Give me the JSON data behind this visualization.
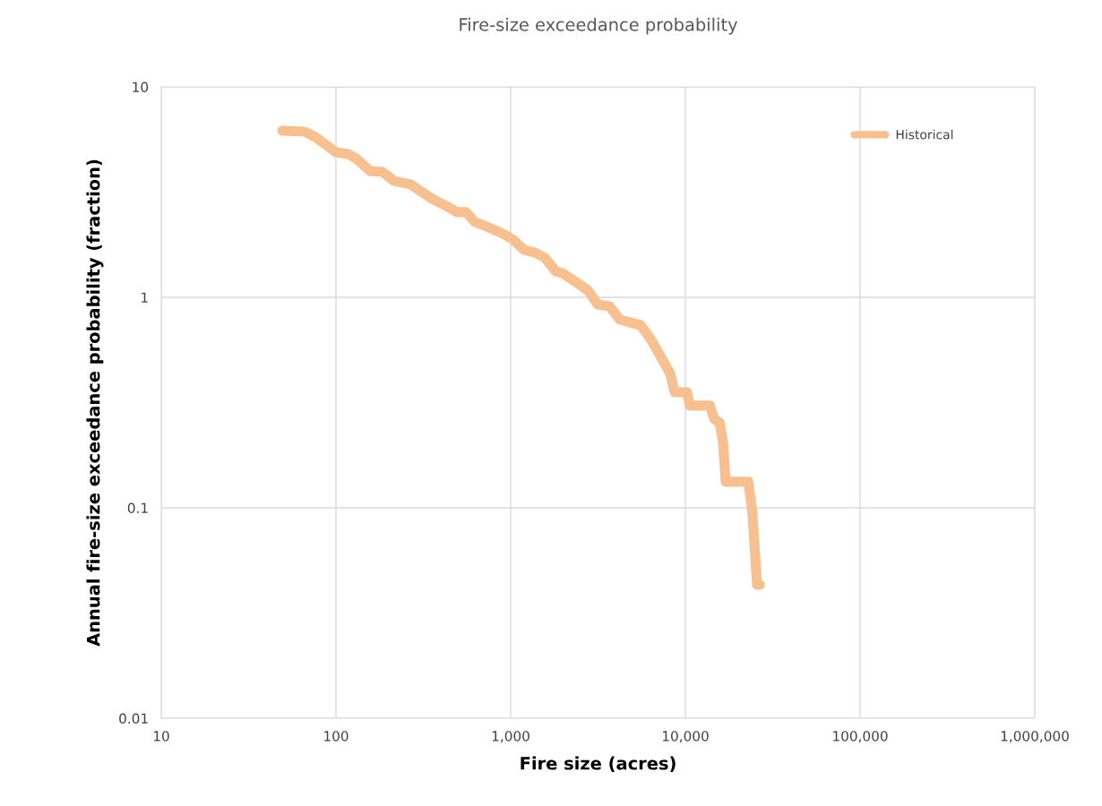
{
  "chart_data": {
    "type": "line",
    "title": "Fire-size exceedance probability",
    "xlabel": "Fire size (acres)",
    "ylabel": "Annual fire-size exceedance probability (fraction)",
    "log": "xy",
    "grid": true,
    "legend": "top right",
    "line_style": "solid",
    "xlim": [
      10,
      1000000
    ],
    "xticks": [
      10,
      100,
      {
        "value": 1000,
        "label": "1,000"
      },
      {
        "value": 10000,
        "label": "10,000"
      },
      {
        "value": 100000,
        "label": "100,000"
      },
      {
        "value": 1000000,
        "label": "1,000,000"
      }
    ],
    "ylim": [
      0.01,
      10
    ],
    "yticks": [
      0.01,
      0.1,
      1,
      10
    ],
    "series": [
      {
        "name": "Historical",
        "color": "#f9c08f",
        "x": [
          49.2,
          66.1,
          76.2,
          100,
          117,
          130,
          157,
          185,
          215,
          267,
          354,
          427,
          492,
          554,
          624,
          727,
          921,
          1040,
          1190,
          1380,
          1570,
          1810,
          1980,
          2480,
          2790,
          3140,
          3670,
          4220,
          4810,
          5540,
          6390,
          7450,
          8180,
          8680,
          10200,
          10600,
          13800,
          14600,
          15700,
          16400,
          17000,
          22900,
          24200,
          25700,
          26700
        ],
        "values": [
          6.19,
          6.13,
          5.78,
          4.89,
          4.8,
          4.57,
          3.98,
          3.94,
          3.57,
          3.44,
          2.94,
          2.72,
          2.54,
          2.54,
          2.28,
          2.17,
          1.99,
          1.87,
          1.68,
          1.63,
          1.54,
          1.33,
          1.3,
          1.15,
          1.07,
          0.925,
          0.906,
          0.783,
          0.76,
          0.738,
          0.625,
          0.499,
          0.435,
          0.354,
          0.354,
          0.306,
          0.306,
          0.264,
          0.254,
          0.206,
          0.133,
          0.133,
          0.0943,
          0.0431,
          0.0431
        ]
      }
    ]
  }
}
